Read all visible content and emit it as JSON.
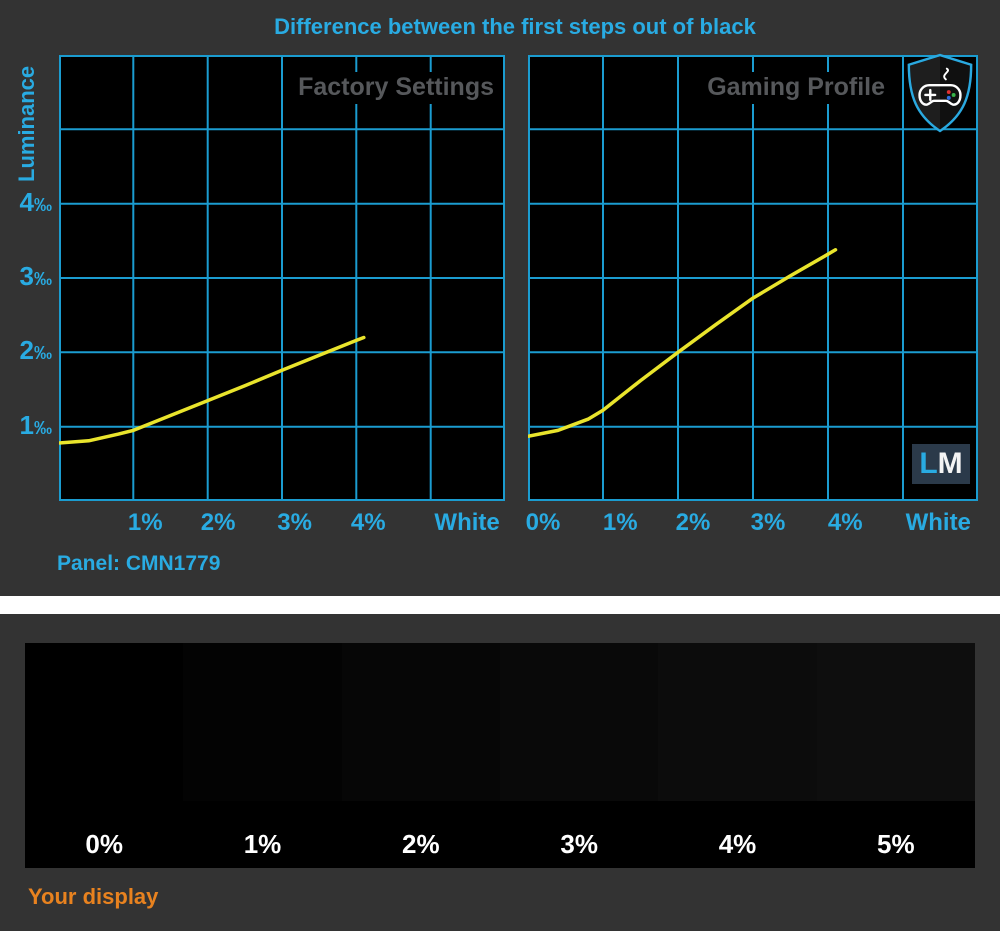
{
  "header": {
    "title": "Difference between the first steps out of black",
    "panel_label": "Panel: CMN1779"
  },
  "colors": {
    "background": "#333333",
    "plot_background": "#000000",
    "grid": "#1B9CD0",
    "accent_cyan": "#29ABE2",
    "curve_yellow": "#E9E42C",
    "profile_label_gray": "#56585B",
    "caption_orange": "#E8821F",
    "logo_background": "#2B3A4A"
  },
  "chart_data": [
    {
      "type": "line",
      "title": "Factory Settings",
      "ylabel": "Luminance",
      "xlim": [
        0,
        6
      ],
      "ylim": [
        0,
        6
      ],
      "grid": true,
      "y_ticks": [
        {
          "value": 1,
          "label": "1",
          "unit": "‰"
        },
        {
          "value": 2,
          "label": "2",
          "unit": "‰"
        },
        {
          "value": 3,
          "label": "3",
          "unit": "‰"
        },
        {
          "value": 4,
          "label": "4",
          "unit": "‰"
        }
      ],
      "x_ticks": [
        {
          "pos": 1.16,
          "label": "1%"
        },
        {
          "pos": 2.14,
          "label": "2%"
        },
        {
          "pos": 3.17,
          "label": "3%"
        },
        {
          "pos": 4.16,
          "label": "4%"
        },
        {
          "pos": 5.49,
          "label": "White"
        }
      ],
      "series": [
        {
          "name": "Factory Settings luminance difference",
          "id": "factory-curve",
          "color": "#E9E42C",
          "points": [
            [
              0,
              0.78
            ],
            [
              0.4,
              0.81
            ],
            [
              0.8,
              0.9
            ],
            [
              1,
              0.95
            ],
            [
              1.5,
              1.15
            ],
            [
              2,
              1.35
            ],
            [
              2.5,
              1.55
            ],
            [
              3,
              1.76
            ],
            [
              3.5,
              1.96
            ],
            [
              4,
              2.16
            ],
            [
              4.1,
              2.2
            ]
          ]
        }
      ]
    },
    {
      "type": "line",
      "title": "Gaming Profile",
      "ylabel": "Luminance",
      "xlim": [
        0,
        6
      ],
      "ylim": [
        0,
        6
      ],
      "grid": true,
      "y_ticks": [
        {
          "value": 1,
          "label": "1",
          "unit": "‰"
        },
        {
          "value": 2,
          "label": "2",
          "unit": "‰"
        },
        {
          "value": 3,
          "label": "3",
          "unit": "‰"
        },
        {
          "value": 4,
          "label": "4",
          "unit": "‰"
        }
      ],
      "x_ticks": [
        {
          "pos": 0.2,
          "label": "0%"
        },
        {
          "pos": 1.23,
          "label": "1%"
        },
        {
          "pos": 2.2,
          "label": "2%"
        },
        {
          "pos": 3.2,
          "label": "3%"
        },
        {
          "pos": 4.23,
          "label": "4%"
        },
        {
          "pos": 5.47,
          "label": "White"
        }
      ],
      "series": [
        {
          "name": "Gaming Profile luminance difference",
          "id": "gaming-curve",
          "color": "#E9E42C",
          "points": [
            [
              0,
              0.87
            ],
            [
              0.4,
              0.95
            ],
            [
              0.8,
              1.1
            ],
            [
              1,
              1.22
            ],
            [
              1.5,
              1.62
            ],
            [
              2,
              2.0
            ],
            [
              2.5,
              2.37
            ],
            [
              3,
              2.73
            ],
            [
              3.5,
              3.03
            ],
            [
              4,
              3.32
            ],
            [
              4.1,
              3.38
            ]
          ]
        }
      ]
    }
  ],
  "branding": {
    "shield_icon": "gamepad-shield-icon",
    "logo_l": "L",
    "logo_m": "M"
  },
  "display_test": {
    "caption": "Your display",
    "steps": [
      {
        "label": "0%",
        "color": "#000000"
      },
      {
        "label": "1%",
        "color": "#030303"
      },
      {
        "label": "2%",
        "color": "#060606"
      },
      {
        "label": "3%",
        "color": "#090909"
      },
      {
        "label": "4%",
        "color": "#0C0C0C"
      },
      {
        "label": "5%",
        "color": "#0E0E0E"
      }
    ]
  }
}
